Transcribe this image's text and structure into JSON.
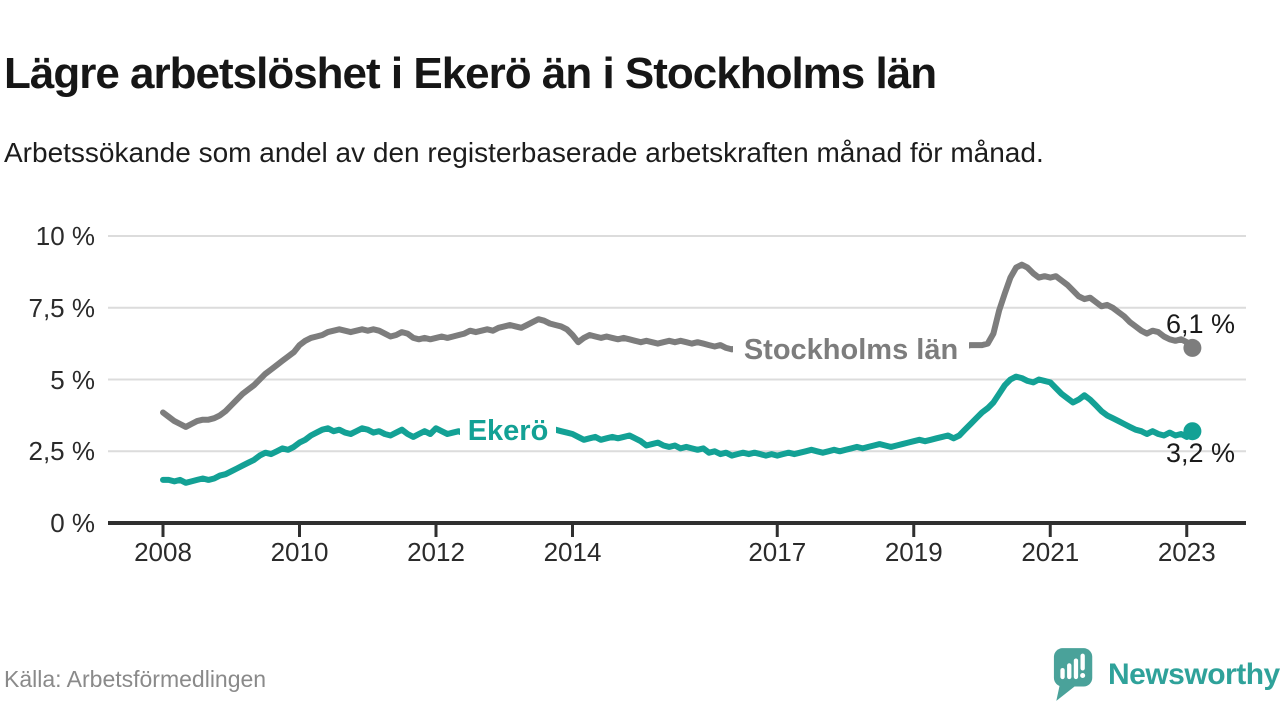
{
  "title": "Lägre arbetslöshet i Ekerö än i Stockholms län",
  "subtitle": "Arbetssökande som andel av den registerbaserade arbetskraften månad för månad.",
  "source": "Källa: Arbetsförmedlingen",
  "branding": {
    "name": "Newsworthy",
    "icon": "speech-bubble-bar-chart-icon"
  },
  "colors": {
    "stockholm_line": "#7d7d7d",
    "ekero_line": "#13a195",
    "axis": "#2f2f2f",
    "gridline": "#dcdcdc",
    "end_label_text": "#1a1a1a",
    "brand_teal": "#2fa29a",
    "tick_label_text": "#2b2b2b"
  },
  "chart_data": {
    "type": "line",
    "title": "Lägre arbetslöshet i Ekerö än i Stockholms län",
    "subtitle": "Arbetssökande som andel av den registerbaserade arbetskraften månad för månad.",
    "unit": "%",
    "grid": "horizontal",
    "legend_position": "inline-on-line",
    "ylim": [
      0,
      10
    ],
    "xlim_years": [
      2007.2,
      2023.85
    ],
    "x_start_year": 2008,
    "x_step_months": 1,
    "x_tick_values": [
      2008,
      2010,
      2012,
      2014,
      2017,
      2019,
      2021,
      2023
    ],
    "x_tick_labels": [
      "2008",
      "2010",
      "2012",
      "2014",
      "2017",
      "2019",
      "2021",
      "2023"
    ],
    "y_tick_values": [
      10,
      7.5,
      5,
      2.5,
      0
    ],
    "y_tick_labels": [
      "10 %",
      "7,5 %",
      "5 %",
      "2,5 %",
      "0 %"
    ],
    "series": [
      {
        "name": "Stockholms län",
        "color": "#7d7d7d",
        "end_label": "6,1 %",
        "last_value": 6.1,
        "values": [
          3.85,
          3.7,
          3.55,
          3.45,
          3.35,
          3.45,
          3.55,
          3.6,
          3.6,
          3.65,
          3.75,
          3.9,
          4.1,
          4.3,
          4.5,
          4.65,
          4.8,
          5.0,
          5.2,
          5.35,
          5.5,
          5.65,
          5.8,
          5.95,
          6.2,
          6.35,
          6.45,
          6.5,
          6.55,
          6.65,
          6.7,
          6.75,
          6.7,
          6.65,
          6.7,
          6.75,
          6.7,
          6.75,
          6.7,
          6.6,
          6.5,
          6.55,
          6.65,
          6.6,
          6.45,
          6.4,
          6.45,
          6.4,
          6.45,
          6.5,
          6.45,
          6.5,
          6.55,
          6.6,
          6.7,
          6.65,
          6.7,
          6.75,
          6.7,
          6.8,
          6.85,
          6.9,
          6.85,
          6.8,
          6.9,
          7.0,
          7.1,
          7.05,
          6.95,
          6.9,
          6.85,
          6.75,
          6.55,
          6.3,
          6.45,
          6.55,
          6.5,
          6.45,
          6.5,
          6.45,
          6.4,
          6.45,
          6.4,
          6.35,
          6.3,
          6.35,
          6.3,
          6.25,
          6.3,
          6.35,
          6.3,
          6.35,
          6.3,
          6.25,
          6.3,
          6.25,
          6.2,
          6.15,
          6.2,
          6.1,
          6.05,
          6.1,
          6.15,
          6.1,
          6.05,
          6.0,
          6.05,
          6.1,
          6.05,
          6.0,
          6.05,
          6.1,
          6.05,
          6.1,
          6.15,
          6.1,
          6.05,
          6.1,
          6.05,
          6.1,
          6.1,
          6.05,
          6.0,
          6.05,
          6.0,
          6.05,
          6.1,
          6.05,
          6.0,
          5.95,
          6.0,
          6.05,
          6.0,
          6.05,
          6.0,
          6.05,
          6.1,
          6.15,
          6.2,
          6.15,
          6.1,
          6.15,
          6.2,
          6.2,
          6.2,
          6.25,
          6.6,
          7.4,
          8.0,
          8.55,
          8.9,
          9.0,
          8.9,
          8.7,
          8.55,
          8.6,
          8.55,
          8.6,
          8.45,
          8.3,
          8.1,
          7.9,
          7.8,
          7.85,
          7.7,
          7.55,
          7.6,
          7.5,
          7.35,
          7.2,
          7.0,
          6.85,
          6.7,
          6.6,
          6.7,
          6.65,
          6.5,
          6.4,
          6.35,
          6.4,
          6.3,
          6.1
        ]
      },
      {
        "name": "Ekerö",
        "color": "#13a195",
        "end_label": "3,2 %",
        "last_value": 3.2,
        "values": [
          1.5,
          1.5,
          1.45,
          1.5,
          1.4,
          1.45,
          1.5,
          1.55,
          1.5,
          1.55,
          1.65,
          1.7,
          1.8,
          1.9,
          2.0,
          2.1,
          2.2,
          2.35,
          2.45,
          2.4,
          2.5,
          2.6,
          2.55,
          2.65,
          2.8,
          2.9,
          3.05,
          3.15,
          3.25,
          3.3,
          3.2,
          3.25,
          3.15,
          3.1,
          3.2,
          3.3,
          3.25,
          3.15,
          3.2,
          3.1,
          3.05,
          3.15,
          3.25,
          3.1,
          3.0,
          3.1,
          3.2,
          3.1,
          3.3,
          3.2,
          3.1,
          3.15,
          3.2,
          3.1,
          3.2,
          3.25,
          3.15,
          3.2,
          3.15,
          3.2,
          3.25,
          3.3,
          3.25,
          3.35,
          3.3,
          3.35,
          3.4,
          3.35,
          3.3,
          3.25,
          3.2,
          3.15,
          3.1,
          3.0,
          2.9,
          2.95,
          3.0,
          2.9,
          2.95,
          3.0,
          2.95,
          3.0,
          3.05,
          2.95,
          2.85,
          2.7,
          2.75,
          2.8,
          2.7,
          2.65,
          2.7,
          2.6,
          2.65,
          2.6,
          2.55,
          2.6,
          2.45,
          2.5,
          2.4,
          2.45,
          2.35,
          2.4,
          2.45,
          2.4,
          2.45,
          2.4,
          2.35,
          2.4,
          2.35,
          2.4,
          2.45,
          2.4,
          2.45,
          2.5,
          2.55,
          2.5,
          2.45,
          2.5,
          2.55,
          2.5,
          2.55,
          2.6,
          2.65,
          2.6,
          2.65,
          2.7,
          2.75,
          2.7,
          2.65,
          2.7,
          2.75,
          2.8,
          2.85,
          2.9,
          2.85,
          2.9,
          2.95,
          3.0,
          3.05,
          2.95,
          3.05,
          3.25,
          3.45,
          3.65,
          3.85,
          4.0,
          4.2,
          4.5,
          4.8,
          5.0,
          5.1,
          5.05,
          4.95,
          4.9,
          5.0,
          4.95,
          4.9,
          4.7,
          4.5,
          4.35,
          4.2,
          4.3,
          4.45,
          4.3,
          4.1,
          3.9,
          3.75,
          3.65,
          3.55,
          3.45,
          3.35,
          3.25,
          3.2,
          3.1,
          3.2,
          3.1,
          3.05,
          3.15,
          3.05,
          3.1,
          3.0,
          3.2
        ]
      }
    ]
  }
}
